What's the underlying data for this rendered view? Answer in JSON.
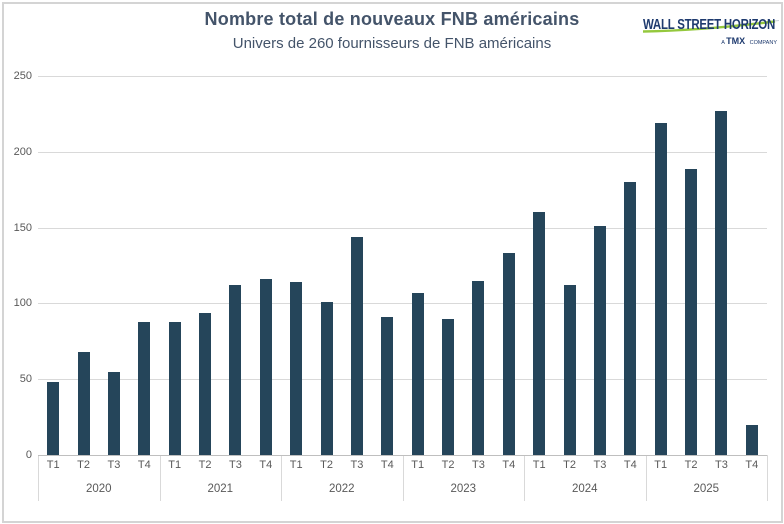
{
  "header": {
    "title": "Nombre total de nouveaux FNB américains",
    "subtitle": "Univers de 260 fournisseurs de FNB américains"
  },
  "logo": {
    "brand": "WALL STREET HORIZON",
    "tagline_prefix": "A ",
    "tagline_brand": "TMX",
    "tagline_suffix": " COMPANY",
    "brand_color": "#1e3a6e",
    "swoosh_color": "#94c83d"
  },
  "chart_data": {
    "type": "bar",
    "title": "Nombre total de nouveaux FNB américains",
    "subtitle": "Univers de 260 fournisseurs de FNB américains",
    "quarter_labels": [
      "T1",
      "T2",
      "T3",
      "T4"
    ],
    "groups": [
      {
        "year": "2020",
        "values": [
          48,
          68,
          55,
          88
        ]
      },
      {
        "year": "2021",
        "values": [
          88,
          94,
          112,
          116
        ]
      },
      {
        "year": "2022",
        "values": [
          114,
          101,
          144,
          91
        ]
      },
      {
        "year": "2023",
        "values": [
          107,
          90,
          115,
          133
        ]
      },
      {
        "year": "2024",
        "values": [
          160,
          112,
          151,
          180
        ]
      },
      {
        "year": "2025",
        "values": [
          219,
          189,
          227,
          20
        ]
      }
    ],
    "ylabel": "",
    "xlabel": "",
    "ylim": [
      0,
      250
    ],
    "ytick_step": 50,
    "y_ticks": [
      "0",
      "50",
      "100",
      "150",
      "200",
      "250"
    ],
    "grid": "horizontal",
    "legend": "none",
    "bar_color": "#25455a",
    "gridline_color": "#d9d9d9",
    "axis_text_color": "#595959",
    "title_color": "#44546a"
  }
}
